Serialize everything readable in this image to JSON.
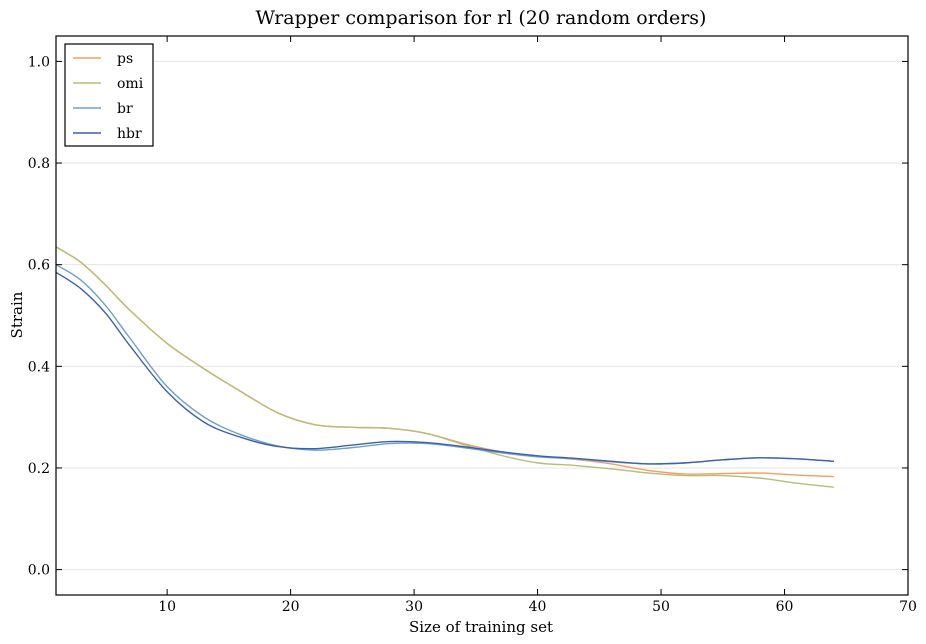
{
  "chart_data": {
    "type": "line",
    "title": "Wrapper comparison for rl (20 random orders)",
    "xlabel": "Size of training set",
    "ylabel": "Strain",
    "xlim": [
      1,
      70
    ],
    "ylim": [
      -0.05,
      1.05
    ],
    "xticks": [
      10,
      20,
      30,
      40,
      50,
      60,
      70
    ],
    "yticks": [
      0.0,
      0.2,
      0.4,
      0.6,
      0.8,
      1.0
    ],
    "xtick_labels": [
      "10",
      "20",
      "30",
      "40",
      "50",
      "60",
      "70"
    ],
    "ytick_labels": [
      "0.0",
      "0.2",
      "0.4",
      "0.6",
      "0.8",
      "1.0"
    ],
    "grid": "horizontal",
    "legend": "top-left",
    "series": [
      {
        "name": "ps",
        "color": "#f0a060",
        "x": [
          1,
          3,
          5,
          7,
          10,
          13,
          16,
          19,
          22,
          25,
          28,
          31,
          34,
          37,
          40,
          43,
          46,
          49,
          52,
          55,
          58,
          61,
          64
        ],
        "y": [
          0.635,
          0.605,
          0.56,
          0.51,
          0.445,
          0.395,
          0.35,
          0.308,
          0.285,
          0.28,
          0.278,
          0.268,
          0.248,
          0.232,
          0.223,
          0.217,
          0.208,
          0.195,
          0.188,
          0.189,
          0.19,
          0.186,
          0.183
        ]
      },
      {
        "name": "omi",
        "color": "#b8bc78",
        "x": [
          1,
          3,
          5,
          7,
          10,
          13,
          16,
          19,
          22,
          25,
          28,
          31,
          34,
          37,
          40,
          43,
          46,
          49,
          52,
          55,
          58,
          61,
          64
        ],
        "y": [
          0.635,
          0.605,
          0.56,
          0.51,
          0.445,
          0.395,
          0.35,
          0.308,
          0.285,
          0.28,
          0.278,
          0.268,
          0.246,
          0.225,
          0.21,
          0.205,
          0.198,
          0.19,
          0.185,
          0.185,
          0.18,
          0.17,
          0.162
        ]
      },
      {
        "name": "br",
        "color": "#6fa0c8",
        "x": [
          1,
          3,
          5,
          7,
          10,
          13,
          16,
          19,
          22,
          25,
          28,
          31,
          34,
          37,
          40,
          43,
          46,
          49,
          52,
          55,
          58,
          61,
          64
        ],
        "y": [
          0.6,
          0.57,
          0.52,
          0.455,
          0.36,
          0.3,
          0.265,
          0.243,
          0.235,
          0.24,
          0.248,
          0.248,
          0.24,
          0.23,
          0.222,
          0.218,
          0.212,
          0.208,
          0.21,
          0.216,
          0.22,
          0.218,
          0.213
        ]
      },
      {
        "name": "hbr",
        "color": "#3e5fb0",
        "x": [
          1,
          3,
          5,
          7,
          10,
          13,
          16,
          19,
          22,
          25,
          28,
          31,
          34,
          37,
          40,
          43,
          46,
          49,
          52,
          55,
          58,
          61,
          64
        ],
        "y": [
          0.585,
          0.553,
          0.505,
          0.44,
          0.35,
          0.29,
          0.26,
          0.242,
          0.238,
          0.245,
          0.252,
          0.25,
          0.242,
          0.232,
          0.224,
          0.219,
          0.213,
          0.208,
          0.21,
          0.216,
          0.22,
          0.218,
          0.213
        ]
      }
    ]
  }
}
